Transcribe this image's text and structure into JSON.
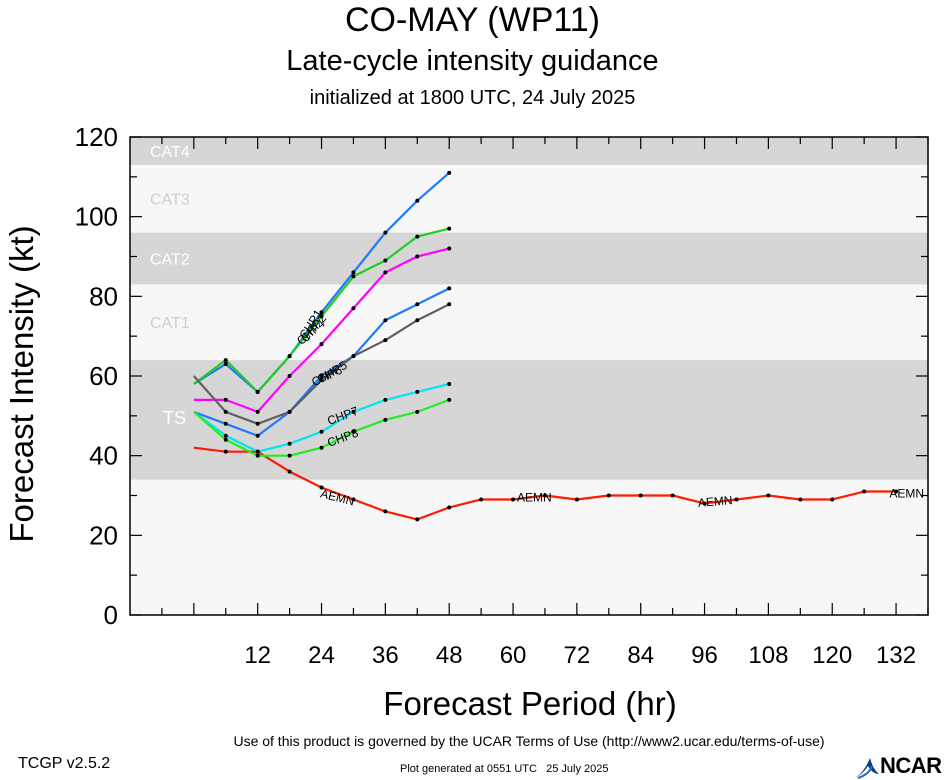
{
  "header": {
    "title": "CO-MAY (WP11)",
    "subtitle": "Late-cycle intensity guidance",
    "init": "initialized at 1800 UTC, 24 July 2025"
  },
  "footer": {
    "terms": "Use of this product is governed by the UCAR Terms of Use (http://www2.ucar.edu/terms-of-use)",
    "version": "TCGP v2.5.2",
    "generated": "Plot generated at 0551 UTC   25 July 2025",
    "logo": "NCAR"
  },
  "chart_data": {
    "type": "line",
    "xlabel": "Forecast Period (hr)",
    "ylabel": "Forecast Intensity (kt)",
    "xlim": [
      -12,
      138
    ],
    "ylim": [
      0,
      120
    ],
    "xticks": [
      12,
      24,
      36,
      48,
      60,
      72,
      84,
      96,
      108,
      120,
      132
    ],
    "yticks": [
      0,
      20,
      40,
      60,
      80,
      100,
      120
    ],
    "bands": [
      {
        "label": "TS",
        "from": 34,
        "to": 64,
        "color": "#d6d6d6"
      },
      {
        "label": "CAT1",
        "from": 64,
        "to": 83,
        "color": "#f7f7f7"
      },
      {
        "label": "CAT2",
        "from": 83,
        "to": 96,
        "color": "#d6d6d6"
      },
      {
        "label": "CAT3",
        "from": 96,
        "to": 113,
        "color": "#f7f7f7"
      },
      {
        "label": "CAT4",
        "from": 113,
        "to": 121,
        "color": "#d6d6d6"
      }
    ],
    "series": [
      {
        "name": "AEMN",
        "color": "#ff1a00",
        "x": [
          0,
          6,
          12,
          18,
          24,
          30,
          36,
          42,
          48,
          54,
          60,
          66,
          72,
          78,
          84,
          90,
          96,
          102,
          108,
          114,
          120,
          126,
          132
        ],
        "y": [
          42,
          41,
          41,
          36,
          32,
          29,
          26,
          24,
          27,
          29,
          29,
          30,
          29,
          30,
          30,
          30,
          28,
          29,
          30,
          29,
          29,
          31,
          31
        ]
      },
      {
        "name": "CHP1",
        "color": "#1f78ff",
        "x": [
          0,
          6,
          12,
          18,
          24,
          30,
          36,
          42,
          48
        ],
        "y": [
          58,
          63,
          56,
          65,
          76,
          86,
          96,
          104,
          111
        ]
      },
      {
        "name": "CHP2",
        "color": "#22cc22",
        "x": [
          0,
          6,
          12,
          18,
          24,
          30,
          36,
          42,
          48
        ],
        "y": [
          58,
          64,
          56,
          65,
          75,
          85,
          89,
          95,
          97
        ]
      },
      {
        "name": "CHP4",
        "color": "#ff00ff",
        "x": [
          0,
          6,
          12,
          18,
          24,
          30,
          36,
          42,
          48
        ],
        "y": [
          54,
          54,
          51,
          60,
          68,
          77,
          86,
          90,
          92
        ]
      },
      {
        "name": "CHP5",
        "color": "#1f78ff",
        "x": [
          0,
          6,
          12,
          18,
          24,
          30,
          36,
          42,
          48
        ],
        "y": [
          51,
          48,
          45,
          51,
          60,
          65,
          74,
          78,
          82
        ]
      },
      {
        "name": "CHP6",
        "color": "#606060",
        "x": [
          0,
          6,
          12,
          18,
          24,
          30,
          36,
          42,
          48
        ],
        "y": [
          60,
          51,
          48,
          51,
          59,
          65,
          69,
          74,
          78
        ]
      },
      {
        "name": "CHP7",
        "color": "#00e5ee",
        "x": [
          0,
          6,
          12,
          18,
          24,
          30,
          36,
          42,
          48
        ],
        "y": [
          51,
          45,
          41,
          43,
          46,
          51,
          54,
          56,
          58
        ]
      },
      {
        "name": "CHP8",
        "color": "#22ee22",
        "x": [
          0,
          6,
          12,
          18,
          24,
          30,
          36,
          42,
          48
        ],
        "y": [
          51,
          44,
          40,
          40,
          42,
          46,
          49,
          51,
          54
        ]
      }
    ],
    "line_labels": [
      {
        "text": "AEMN",
        "x": 27,
        "y": 29.5,
        "angle": 14
      },
      {
        "text": "AEMN",
        "x": 64,
        "y": 29.5,
        "angle": 0
      },
      {
        "text": "AEMN",
        "x": 98,
        "y": 28.5,
        "angle": -5
      },
      {
        "text": "AEMN",
        "x": 134,
        "y": 30.5,
        "angle": 0
      },
      {
        "text": "CHP1",
        "x": 22,
        "y": 73,
        "angle": -58
      },
      {
        "text": "CHP2",
        "x": 22.5,
        "y": 72,
        "angle": -50
      },
      {
        "text": "CHP4",
        "x": 22,
        "y": 71,
        "angle": -40
      },
      {
        "text": "CHP5",
        "x": 26,
        "y": 61,
        "angle": -30
      },
      {
        "text": "CHP6",
        "x": 25,
        "y": 60,
        "angle": -25
      },
      {
        "text": "CHP7",
        "x": 28,
        "y": 50,
        "angle": -20
      },
      {
        "text": "CHP8",
        "x": 28,
        "y": 44.5,
        "angle": -20
      }
    ]
  }
}
